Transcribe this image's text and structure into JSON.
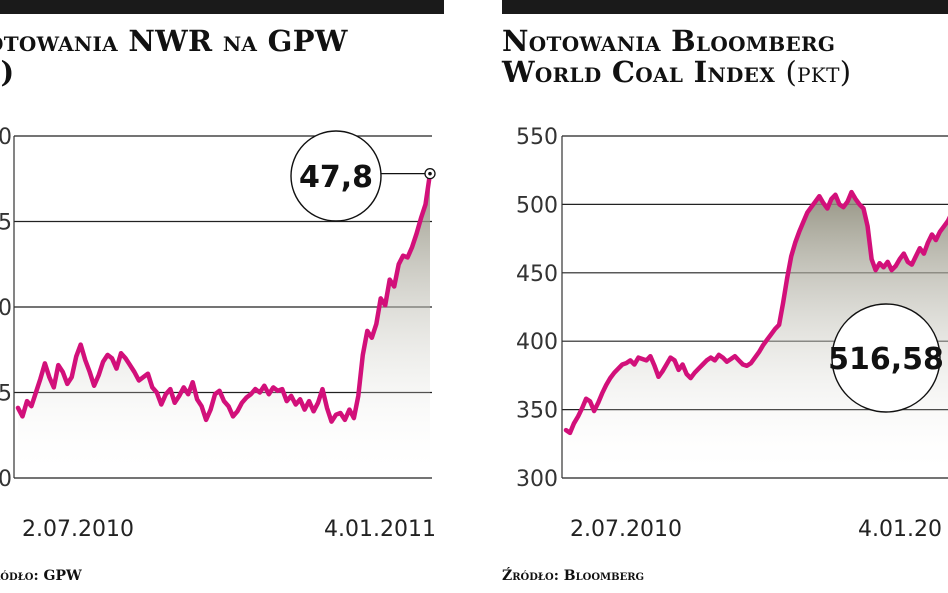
{
  "panels": [
    {
      "title_line1": "otowania NWR na GPW",
      "title_line2": "ł)",
      "source": "ródło: GPW",
      "chart_data": {
        "type": "area",
        "y_axis_tick_labels": [
          "0",
          "5",
          "0",
          "5",
          "0"
        ],
        "ylim": [
          30,
          50
        ],
        "x_tick_labels": [
          "2.07.2010",
          "4.01.2011"
        ],
        "callout": "47,8",
        "series": [
          {
            "values": [
              34.1,
              33.6,
              34.5,
              34.2,
              35.0,
              35.8,
              36.7,
              35.9,
              35.3,
              36.6,
              36.2,
              35.5,
              35.9,
              37.1,
              37.8,
              36.9,
              36.2,
              35.4,
              36.0,
              36.8,
              37.2,
              37.0,
              36.4,
              37.3,
              37.0,
              36.6,
              36.2,
              35.7,
              35.9,
              36.1,
              35.3,
              35.0,
              34.3,
              34.9,
              35.2,
              34.4,
              34.8,
              35.3,
              34.9,
              35.6,
              34.6,
              34.2,
              33.4,
              34.0,
              34.9,
              35.1,
              34.5,
              34.2,
              33.6,
              33.9,
              34.4,
              34.7,
              34.9,
              35.2,
              35.0,
              35.4,
              34.9,
              35.3,
              35.1,
              35.2,
              34.5,
              34.8,
              34.3,
              34.6,
              34.0,
              34.5,
              33.9,
              34.4,
              35.2,
              34.1,
              33.3,
              33.7,
              33.8,
              33.4,
              34.0,
              33.5,
              34.8,
              37.2,
              38.6,
              38.2,
              39.0,
              40.5,
              40.1,
              41.6,
              41.2,
              42.5,
              43.0,
              42.9,
              43.5,
              44.3,
              45.2,
              46.0,
              47.8
            ]
          }
        ]
      }
    },
    {
      "title_line1": "Notowania Bloomberg",
      "title_line2": "World Coal Index",
      "unit": "(pkt)",
      "source": "Źródło: Bloomberg",
      "chart_data": {
        "type": "area",
        "y_axis_tick_labels": [
          "550",
          "500",
          "450",
          "400",
          "350",
          "300"
        ],
        "y_ticks": [
          550,
          500,
          450,
          400,
          350,
          300
        ],
        "ylim": [
          300,
          550
        ],
        "x_tick_labels": [
          "2.07.2010",
          "4.01.20"
        ],
        "callout": "516,58",
        "series": [
          {
            "values": [
              335,
              333,
              340,
              345,
              351,
              358,
              356,
              349,
              355,
              362,
              368,
              373,
              377,
              380,
              383,
              384,
              386,
              383,
              388,
              387,
              386,
              389,
              382,
              374,
              378,
              383,
              388,
              386,
              379,
              383,
              376,
              373,
              377,
              380,
              383,
              386,
              388,
              386,
              390,
              388,
              385,
              387,
              389,
              386,
              383,
              382,
              384,
              388,
              392,
              397,
              401,
              405,
              409,
              412,
              428,
              446,
              462,
              472,
              480,
              487,
              494,
              498,
              502,
              506,
              501,
              497,
              504,
              507,
              500,
              498,
              502,
              509,
              504,
              500,
              497,
              484,
              460,
              452,
              457,
              454,
              458,
              452,
              455,
              460,
              464,
              458,
              456,
              462,
              468,
              464,
              472,
              478,
              474,
              480,
              484,
              488,
              494
            ]
          }
        ]
      }
    }
  ]
}
